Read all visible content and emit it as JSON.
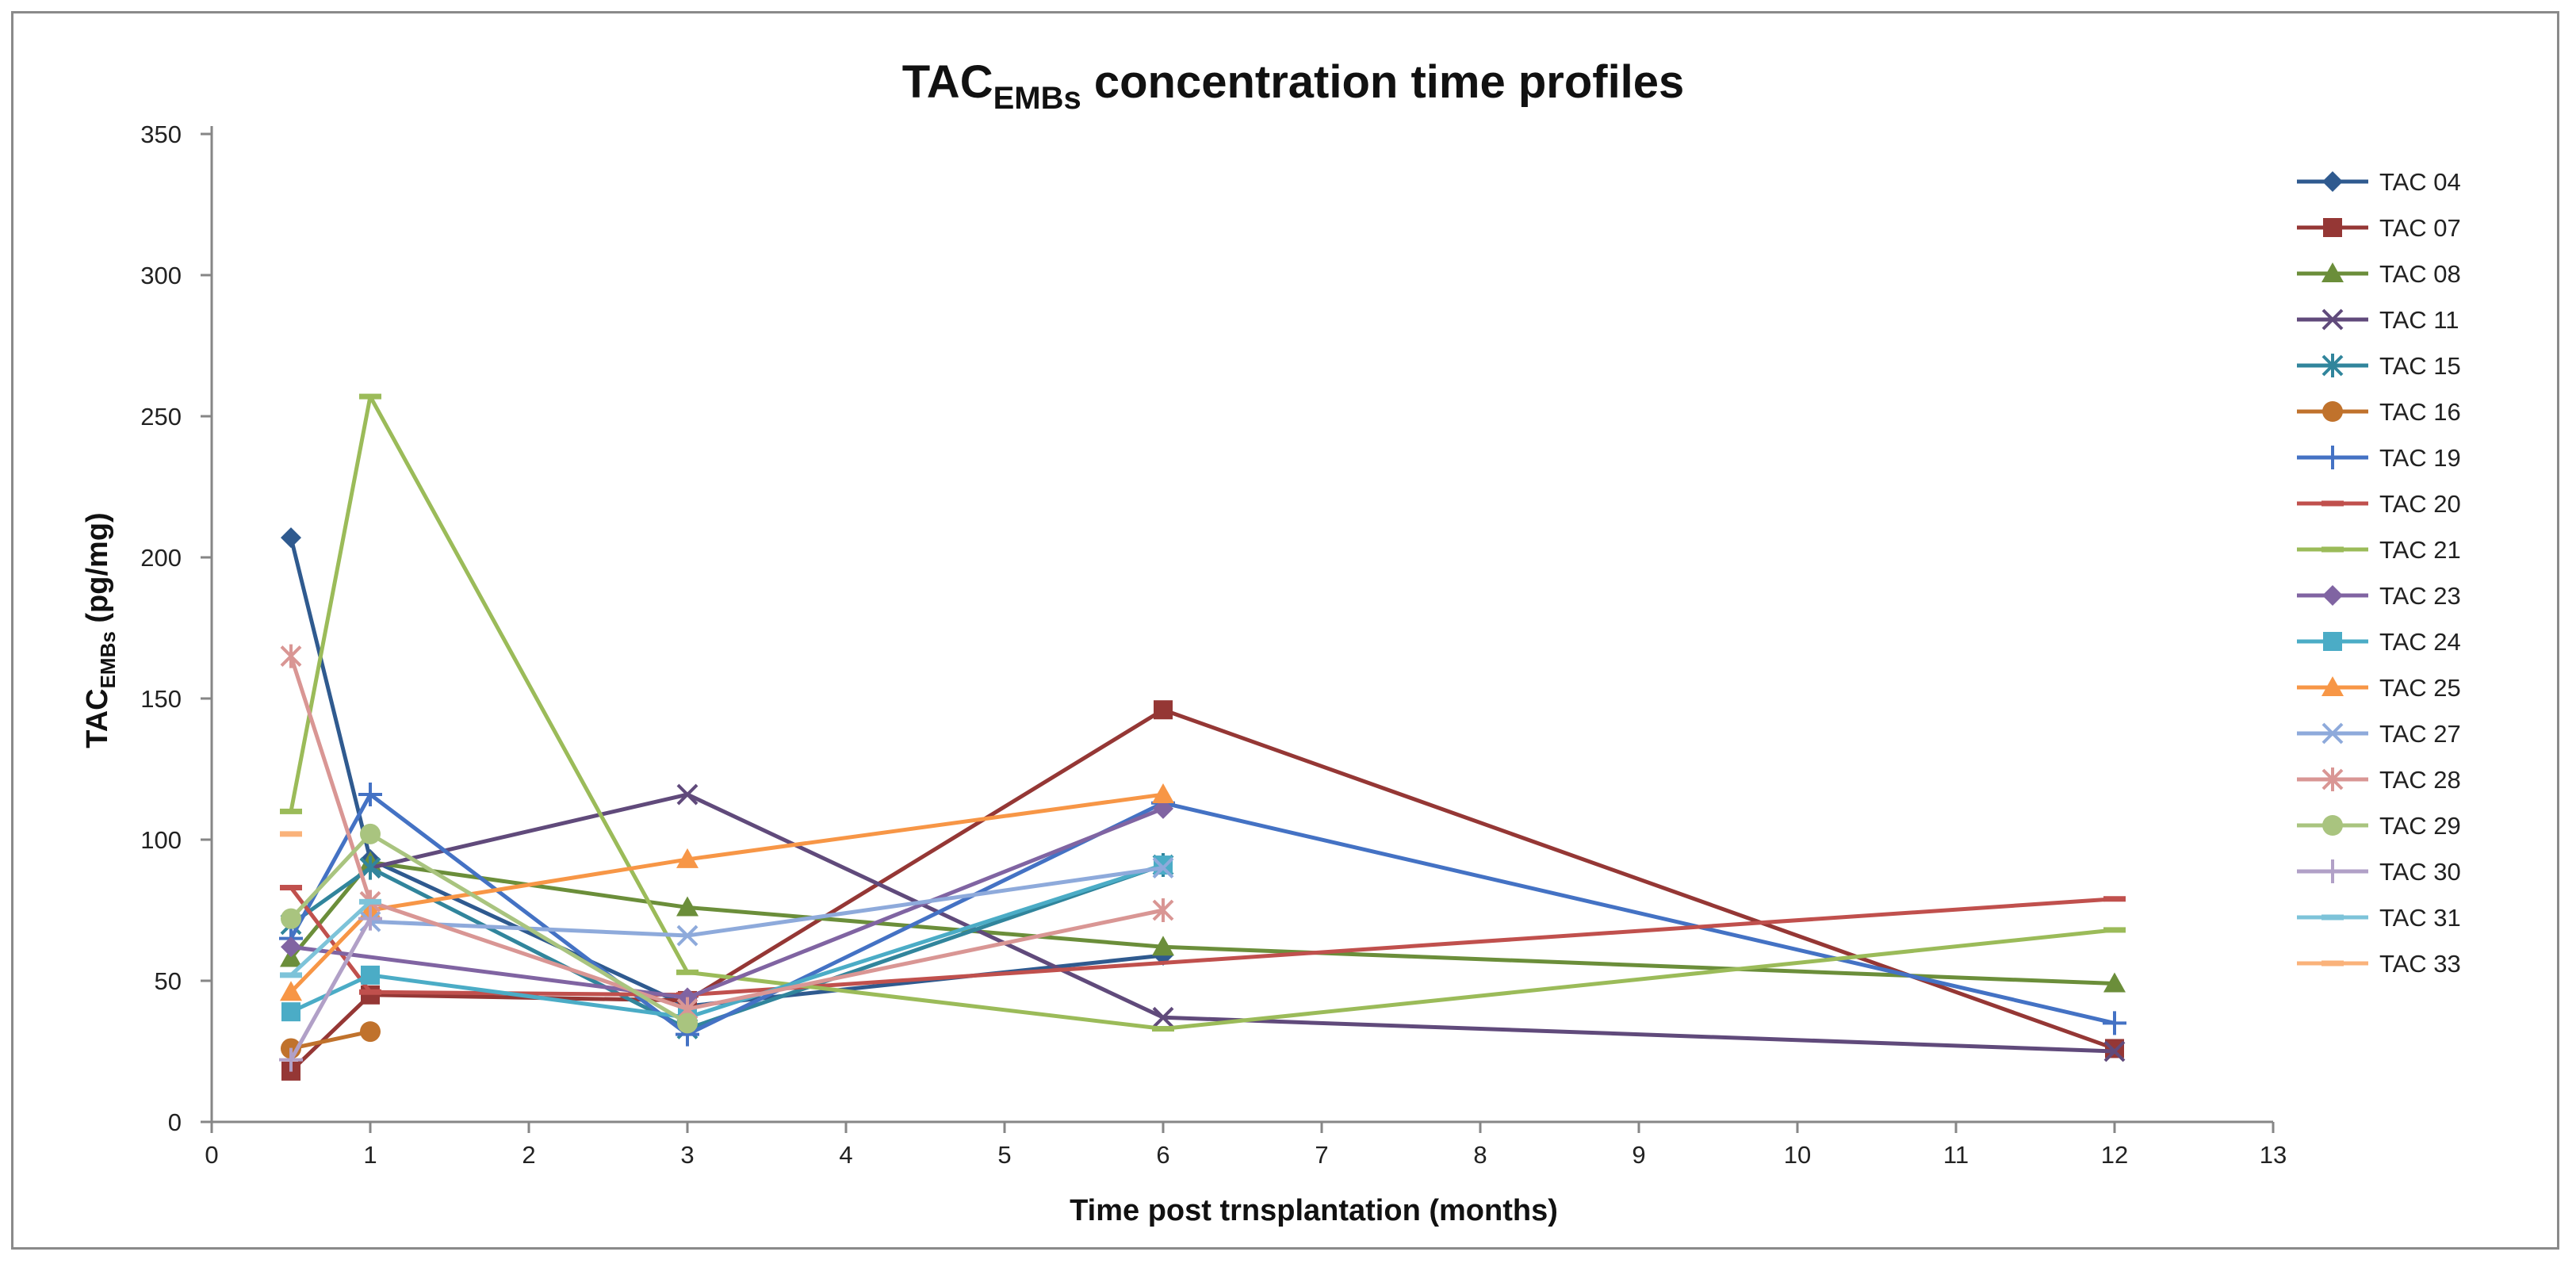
{
  "chart_data": {
    "type": "line",
    "title": {
      "main": "TAC",
      "sub": "EMBs",
      "rest": " concentration time profiles"
    },
    "xlabel": "Time post trnsplantation  (months)",
    "ylabel": {
      "main": "TAC",
      "sub": "EMBs",
      "rest": " (pg/mg)"
    },
    "xlim": [
      0,
      13
    ],
    "ylim": [
      0,
      350
    ],
    "xticks": [
      0,
      1,
      2,
      3,
      4,
      5,
      6,
      7,
      8,
      9,
      10,
      11,
      12,
      13
    ],
    "yticks": [
      0,
      50,
      100,
      150,
      200,
      250,
      300,
      350
    ],
    "grid": false,
    "legend_position": "right",
    "series": [
      {
        "name": "TAC 04",
        "color": "#2f5a8f",
        "marker": "diamond",
        "points": [
          [
            0.5,
            207
          ],
          [
            1,
            93
          ],
          [
            3,
            41
          ],
          [
            6,
            59
          ]
        ]
      },
      {
        "name": "TAC 07",
        "color": "#953735",
        "marker": "square",
        "points": [
          [
            0.5,
            18
          ],
          [
            1,
            45
          ],
          [
            3,
            43
          ],
          [
            6,
            146
          ],
          [
            12,
            26
          ]
        ]
      },
      {
        "name": "TAC 08",
        "color": "#6b8e3a",
        "marker": "triangle",
        "points": [
          [
            0.5,
            58
          ],
          [
            1,
            92
          ],
          [
            3,
            76
          ],
          [
            6,
            62
          ],
          [
            12,
            49
          ]
        ]
      },
      {
        "name": "TAC 11",
        "color": "#604a7b",
        "marker": "x",
        "points": [
          [
            1,
            90
          ],
          [
            3,
            116
          ],
          [
            6,
            37
          ],
          [
            12,
            25
          ]
        ]
      },
      {
        "name": "TAC 15",
        "color": "#31859c",
        "marker": "star",
        "points": [
          [
            0.5,
            70
          ],
          [
            1,
            90
          ],
          [
            3,
            33
          ],
          [
            6,
            91
          ]
        ]
      },
      {
        "name": "TAC 16",
        "color": "#c0722c",
        "marker": "circle",
        "points": [
          [
            0.5,
            26
          ],
          [
            1,
            32
          ]
        ]
      },
      {
        "name": "TAC 19",
        "color": "#4472c4",
        "marker": "plus",
        "points": [
          [
            0.5,
            65
          ],
          [
            1,
            116
          ],
          [
            3,
            31
          ],
          [
            6,
            113
          ],
          [
            12,
            35
          ]
        ]
      },
      {
        "name": "TAC 20",
        "color": "#c0504d",
        "marker": "dash",
        "points": [
          [
            0.5,
            83
          ],
          [
            1,
            46
          ],
          [
            3,
            45
          ],
          [
            12,
            79
          ]
        ]
      },
      {
        "name": "TAC 21",
        "color": "#9bbb59",
        "marker": "dash",
        "points": [
          [
            0.5,
            110
          ],
          [
            1,
            257
          ],
          [
            3,
            53
          ],
          [
            6,
            33
          ],
          [
            12,
            68
          ]
        ]
      },
      {
        "name": "TAC 23",
        "color": "#8064a2",
        "marker": "diamond",
        "points": [
          [
            0.5,
            62
          ],
          [
            3,
            44
          ],
          [
            6,
            111
          ]
        ]
      },
      {
        "name": "TAC 24",
        "color": "#4bacc6",
        "marker": "square",
        "points": [
          [
            0.5,
            39
          ],
          [
            1,
            52
          ],
          [
            3,
            37
          ],
          [
            6,
            91
          ]
        ]
      },
      {
        "name": "TAC 25",
        "color": "#f79646",
        "marker": "triangle",
        "points": [
          [
            0.5,
            46
          ],
          [
            1,
            75
          ],
          [
            3,
            93
          ],
          [
            6,
            116
          ]
        ]
      },
      {
        "name": "TAC 27",
        "color": "#8eaadb",
        "marker": "x",
        "points": [
          [
            1,
            71
          ],
          [
            3,
            66
          ],
          [
            6,
            90
          ]
        ]
      },
      {
        "name": "TAC 28",
        "color": "#d99694",
        "marker": "star",
        "points": [
          [
            0.5,
            165
          ],
          [
            1,
            78
          ],
          [
            3,
            40
          ],
          [
            6,
            75
          ]
        ]
      },
      {
        "name": "TAC 29",
        "color": "#a9c47f",
        "marker": "circle",
        "points": [
          [
            0.5,
            72
          ],
          [
            1,
            102
          ],
          [
            3,
            35
          ]
        ]
      },
      {
        "name": "TAC 30",
        "color": "#b1a0c7",
        "marker": "plus",
        "points": [
          [
            0.5,
            22
          ],
          [
            1,
            72
          ]
        ]
      },
      {
        "name": "TAC 31",
        "color": "#7dc3d9",
        "marker": "dash",
        "points": [
          [
            0.5,
            52
          ],
          [
            1,
            78
          ]
        ]
      },
      {
        "name": "TAC 33",
        "color": "#fab27a",
        "marker": "dash",
        "points": [
          [
            0.5,
            102
          ]
        ]
      }
    ]
  }
}
